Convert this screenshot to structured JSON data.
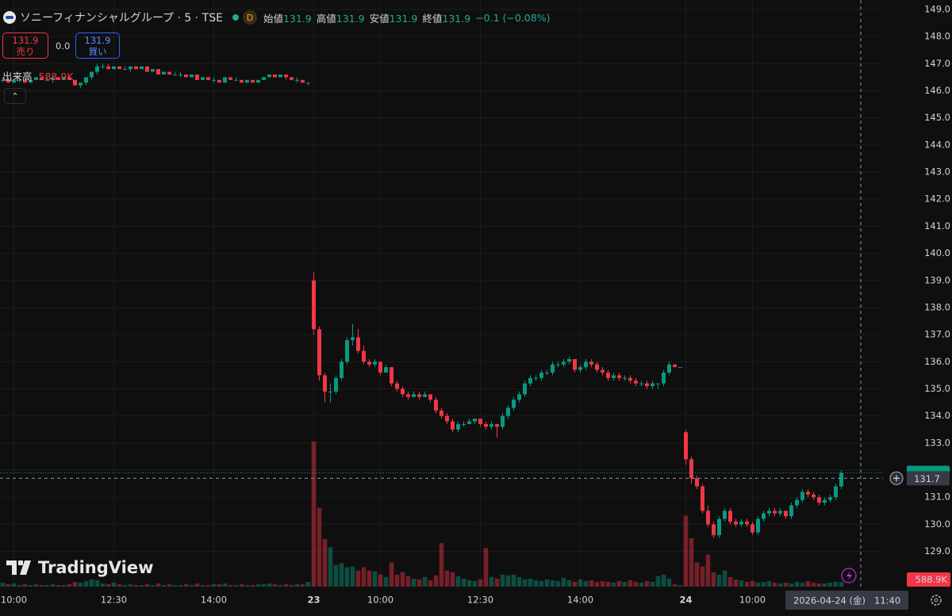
{
  "header": {
    "symbol": "ソニーフィナンシャルグループ · 5 · TSE",
    "interval_badge": "D",
    "ohlc": [
      {
        "label": "始値",
        "value": "131.9"
      },
      {
        "label": "高値",
        "value": "131.9"
      },
      {
        "label": "安値",
        "value": "131.9"
      },
      {
        "label": "終値",
        "value": "131.9"
      }
    ],
    "change": "−0.1 (−0.08%)"
  },
  "trade_buttons": {
    "sell_price": "131.9",
    "sell_label": "売り",
    "spread": "0.0",
    "buy_price": "131.9",
    "buy_label": "買い"
  },
  "volume_legend": {
    "label": "出来高",
    "value": "588.9K"
  },
  "watermark": "TradingView",
  "crosshair": {
    "date": "2026-04-24 (金)",
    "time": "11:40",
    "price": 131.7
  },
  "chart_data": {
    "type": "candlestick",
    "up_color": "#089981",
    "down_color": "#f23645",
    "grid": true,
    "last_price": 131.9,
    "ylim": [
      127.7,
      149.35
    ],
    "yticks": [
      {
        "value": 149,
        "label": "149.0"
      },
      {
        "value": 148,
        "label": "148.0"
      },
      {
        "value": 147,
        "label": "147.0"
      },
      {
        "value": 146,
        "label": "146.0"
      },
      {
        "value": 145,
        "label": "145.0"
      },
      {
        "value": 144,
        "label": "144.0"
      },
      {
        "value": 143,
        "label": "143.0"
      },
      {
        "value": 142,
        "label": "142.0"
      },
      {
        "value": 141,
        "label": "141.0"
      },
      {
        "value": 140,
        "label": "140.0"
      },
      {
        "value": 139,
        "label": "139.0"
      },
      {
        "value": 138,
        "label": "138.0"
      },
      {
        "value": 137,
        "label": "137.0"
      },
      {
        "value": 136,
        "label": "136.0"
      },
      {
        "value": 135,
        "label": "135.0"
      },
      {
        "value": 134,
        "label": "134.0"
      },
      {
        "value": 133,
        "label": "133.0"
      },
      {
        "value": 132,
        "label": "132.0"
      },
      {
        "value": 131,
        "label": "131.0"
      },
      {
        "value": 130,
        "label": "130.0"
      },
      {
        "value": 129,
        "label": "129.0"
      }
    ],
    "categories": [
      null,
      null,
      "10:00",
      null,
      null,
      null,
      null,
      null,
      null,
      null,
      null,
      null,
      null,
      null,
      null,
      null,
      null,
      null,
      null,
      null,
      "12:30",
      null,
      null,
      null,
      null,
      null,
      null,
      null,
      null,
      null,
      null,
      null,
      null,
      null,
      null,
      null,
      null,
      null,
      "14:00",
      null,
      null,
      null,
      null,
      null,
      null,
      null,
      null,
      null,
      null,
      null,
      null,
      null,
      null,
      null,
      null,
      null,
      "23",
      null,
      null,
      null,
      null,
      null,
      null,
      null,
      null,
      null,
      null,
      null,
      "10:00",
      null,
      null,
      null,
      null,
      null,
      null,
      null,
      null,
      null,
      null,
      null,
      null,
      null,
      null,
      null,
      null,
      null,
      "12:30",
      null,
      null,
      null,
      null,
      null,
      null,
      null,
      null,
      null,
      null,
      null,
      null,
      null,
      null,
      null,
      null,
      null,
      "14:00",
      null,
      null,
      null,
      null,
      null,
      null,
      null,
      null,
      null,
      null,
      null,
      null,
      null,
      null,
      null,
      null,
      null,
      null,
      "24",
      null,
      null,
      null,
      null,
      null,
      null,
      null,
      null,
      null,
      null,
      null,
      "10:00",
      null,
      null,
      null,
      null,
      null,
      null,
      null,
      null,
      null,
      null,
      null,
      null,
      null,
      null,
      null,
      null
    ],
    "ohlc": [
      [
        146.4,
        146.5,
        146.3,
        146.4
      ],
      [
        146.4,
        146.5,
        146.3,
        146.3
      ],
      [
        146.3,
        146.4,
        146.3,
        146.4
      ],
      [
        146.4,
        146.5,
        146.3,
        146.4
      ],
      [
        146.4,
        146.4,
        146.3,
        146.3
      ],
      [
        146.3,
        146.4,
        146.3,
        146.4
      ],
      [
        146.4,
        146.5,
        146.4,
        146.5
      ],
      [
        146.5,
        146.5,
        146.4,
        146.4
      ],
      [
        146.4,
        146.5,
        146.4,
        146.4
      ],
      [
        146.4,
        146.5,
        146.3,
        146.5
      ],
      [
        146.5,
        146.5,
        146.4,
        146.4
      ],
      [
        146.4,
        146.5,
        146.4,
        146.5
      ],
      [
        146.5,
        146.5,
        146.4,
        146.4
      ],
      [
        146.4,
        146.4,
        146.2,
        146.2
      ],
      [
        146.2,
        146.3,
        146.1,
        146.3
      ],
      [
        146.3,
        146.5,
        146.2,
        146.5
      ],
      [
        146.5,
        146.7,
        146.4,
        146.7
      ],
      [
        146.7,
        147.0,
        146.6,
        146.9
      ],
      [
        146.9,
        147.0,
        146.8,
        146.9
      ],
      [
        146.9,
        147.0,
        146.8,
        146.8
      ],
      [
        146.8,
        146.9,
        146.8,
        146.9
      ],
      [
        146.9,
        146.9,
        146.8,
        146.8
      ],
      [
        146.8,
        146.9,
        146.8,
        146.8
      ],
      [
        146.8,
        146.9,
        146.7,
        146.9
      ],
      [
        146.9,
        146.9,
        146.8,
        146.8
      ],
      [
        146.8,
        146.9,
        146.8,
        146.9
      ],
      [
        146.9,
        146.9,
        146.7,
        146.7
      ],
      [
        146.7,
        146.8,
        146.7,
        146.8
      ],
      [
        146.8,
        146.8,
        146.6,
        146.6
      ],
      [
        146.6,
        146.7,
        146.6,
        146.7
      ],
      [
        146.7,
        146.7,
        146.6,
        146.6
      ],
      [
        146.6,
        146.7,
        146.6,
        146.6
      ],
      [
        146.6,
        146.7,
        146.5,
        146.6
      ],
      [
        146.6,
        146.6,
        146.5,
        146.5
      ],
      [
        146.5,
        146.6,
        146.5,
        146.6
      ],
      [
        146.6,
        146.6,
        146.4,
        146.4
      ],
      [
        146.4,
        146.5,
        146.4,
        146.5
      ],
      [
        146.5,
        146.5,
        146.4,
        146.4
      ],
      [
        146.4,
        146.5,
        146.3,
        146.4
      ],
      [
        146.4,
        146.4,
        146.3,
        146.3
      ],
      [
        146.3,
        146.5,
        146.3,
        146.5
      ],
      [
        146.5,
        146.5,
        146.4,
        146.4
      ],
      [
        146.4,
        146.5,
        146.4,
        146.4
      ],
      [
        146.4,
        146.4,
        146.3,
        146.3
      ],
      [
        146.3,
        146.4,
        146.3,
        146.4
      ],
      [
        146.4,
        146.4,
        146.3,
        146.3
      ],
      [
        146.3,
        146.4,
        146.3,
        146.4
      ],
      [
        146.4,
        146.5,
        146.4,
        146.5
      ],
      [
        146.5,
        146.6,
        146.5,
        146.6
      ],
      [
        146.6,
        146.6,
        146.5,
        146.5
      ],
      [
        146.5,
        146.6,
        146.5,
        146.6
      ],
      [
        146.6,
        146.6,
        146.4,
        146.5
      ],
      [
        146.5,
        146.5,
        146.4,
        146.4
      ],
      [
        146.4,
        146.5,
        146.3,
        146.4
      ],
      [
        146.4,
        146.4,
        146.3,
        146.3
      ],
      [
        146.3,
        146.3,
        146.2,
        146.3
      ],
      [
        139.0,
        139.3,
        137.0,
        137.2
      ],
      [
        137.2,
        137.3,
        135.3,
        135.5
      ],
      [
        135.5,
        135.6,
        134.5,
        134.9
      ],
      [
        134.9,
        135.2,
        134.5,
        134.9
      ],
      [
        134.9,
        135.5,
        134.8,
        135.4
      ],
      [
        135.4,
        136.1,
        135.3,
        136.0
      ],
      [
        136.0,
        136.9,
        135.9,
        136.8
      ],
      [
        136.8,
        137.4,
        136.6,
        136.9
      ],
      [
        136.9,
        137.2,
        136.3,
        136.4
      ],
      [
        136.4,
        136.6,
        135.9,
        136.0
      ],
      [
        136.0,
        136.1,
        135.8,
        135.9
      ],
      [
        135.9,
        136.1,
        135.8,
        136.0
      ],
      [
        136.0,
        136.0,
        135.5,
        135.6
      ],
      [
        135.6,
        135.9,
        135.6,
        135.8
      ],
      [
        135.8,
        135.8,
        135.1,
        135.2
      ],
      [
        135.2,
        135.3,
        134.9,
        135.0
      ],
      [
        135.0,
        135.1,
        134.7,
        134.8
      ],
      [
        134.8,
        134.9,
        134.6,
        134.7
      ],
      [
        134.7,
        134.9,
        134.7,
        134.8
      ],
      [
        134.8,
        134.9,
        134.6,
        134.7
      ],
      [
        134.7,
        134.9,
        134.7,
        134.8
      ],
      [
        134.8,
        134.8,
        134.5,
        134.6
      ],
      [
        134.6,
        134.7,
        134.1,
        134.2
      ],
      [
        134.2,
        134.3,
        133.9,
        134.0
      ],
      [
        134.0,
        134.1,
        133.7,
        133.8
      ],
      [
        133.8,
        133.9,
        133.4,
        133.5
      ],
      [
        133.5,
        133.8,
        133.4,
        133.7
      ],
      [
        133.7,
        133.8,
        133.6,
        133.7
      ],
      [
        133.7,
        133.9,
        133.7,
        133.8
      ],
      [
        133.8,
        133.9,
        133.7,
        133.9
      ],
      [
        133.9,
        133.9,
        133.6,
        133.7
      ],
      [
        133.7,
        133.8,
        133.5,
        133.6
      ],
      [
        133.6,
        133.8,
        133.5,
        133.7
      ],
      [
        133.7,
        133.7,
        133.2,
        133.6
      ],
      [
        133.6,
        134.1,
        133.5,
        134.0
      ],
      [
        134.0,
        134.4,
        133.9,
        134.3
      ],
      [
        134.3,
        134.7,
        134.2,
        134.6
      ],
      [
        134.6,
        134.9,
        134.5,
        134.8
      ],
      [
        134.8,
        135.3,
        134.7,
        135.2
      ],
      [
        135.2,
        135.5,
        135.1,
        135.4
      ],
      [
        135.4,
        135.5,
        135.3,
        135.4
      ],
      [
        135.4,
        135.7,
        135.3,
        135.6
      ],
      [
        135.6,
        135.7,
        135.5,
        135.6
      ],
      [
        135.6,
        136.0,
        135.5,
        135.9
      ],
      [
        135.9,
        136.0,
        135.8,
        135.9
      ],
      [
        135.9,
        136.1,
        135.8,
        136.0
      ],
      [
        136.0,
        136.2,
        135.9,
        136.1
      ],
      [
        136.1,
        136.1,
        135.6,
        135.7
      ],
      [
        135.7,
        135.9,
        135.6,
        135.8
      ],
      [
        135.8,
        136.1,
        135.7,
        136.0
      ],
      [
        136.0,
        136.1,
        135.8,
        135.9
      ],
      [
        135.9,
        136.0,
        135.6,
        135.7
      ],
      [
        135.7,
        135.8,
        135.5,
        135.6
      ],
      [
        135.6,
        135.7,
        135.3,
        135.4
      ],
      [
        135.4,
        135.6,
        135.3,
        135.5
      ],
      [
        135.5,
        135.6,
        135.3,
        135.4
      ],
      [
        135.4,
        135.5,
        135.3,
        135.4
      ],
      [
        135.4,
        135.5,
        135.2,
        135.3
      ],
      [
        135.3,
        135.4,
        135.1,
        135.2
      ],
      [
        135.2,
        135.3,
        135.1,
        135.2
      ],
      [
        135.2,
        135.3,
        135.0,
        135.1
      ],
      [
        135.1,
        135.3,
        135.0,
        135.2
      ],
      [
        135.2,
        135.2,
        135.0,
        135.2
      ],
      [
        135.2,
        135.7,
        135.1,
        135.6
      ],
      [
        135.6,
        136.0,
        135.5,
        135.9
      ],
      [
        135.9,
        135.9,
        135.8,
        135.8
      ],
      [
        135.8,
        135.8,
        135.8,
        135.8
      ],
      [
        133.4,
        133.5,
        132.2,
        132.4
      ],
      [
        132.4,
        132.5,
        131.5,
        131.7
      ],
      [
        131.7,
        131.8,
        131.3,
        131.4
      ],
      [
        131.4,
        131.5,
        130.4,
        130.5
      ],
      [
        130.5,
        130.7,
        129.9,
        130.0
      ],
      [
        130.0,
        130.1,
        129.5,
        129.6
      ],
      [
        129.6,
        130.3,
        129.5,
        130.2
      ],
      [
        130.2,
        130.6,
        130.1,
        130.5
      ],
      [
        130.5,
        130.6,
        130.0,
        130.1
      ],
      [
        130.1,
        130.2,
        129.9,
        130.0
      ],
      [
        130.0,
        130.2,
        129.9,
        130.1
      ],
      [
        130.1,
        130.2,
        129.9,
        130.0
      ],
      [
        130.0,
        130.1,
        129.6,
        129.7
      ],
      [
        129.7,
        130.3,
        129.6,
        130.2
      ],
      [
        130.2,
        130.5,
        130.1,
        130.4
      ],
      [
        130.4,
        130.6,
        130.3,
        130.5
      ],
      [
        130.5,
        130.6,
        130.3,
        130.4
      ],
      [
        130.4,
        130.6,
        130.3,
        130.5
      ],
      [
        130.5,
        130.5,
        130.2,
        130.3
      ],
      [
        130.3,
        130.8,
        130.2,
        130.7
      ],
      [
        130.7,
        131.0,
        130.6,
        130.9
      ],
      [
        130.9,
        131.3,
        130.8,
        131.2
      ],
      [
        131.2,
        131.3,
        131.0,
        131.1
      ],
      [
        131.1,
        131.2,
        130.9,
        131.0
      ],
      [
        131.0,
        131.1,
        130.7,
        130.8
      ],
      [
        130.8,
        131.0,
        130.7,
        130.9
      ],
      [
        130.9,
        131.1,
        130.8,
        131.0
      ],
      [
        131.0,
        131.5,
        130.9,
        131.4
      ],
      [
        131.4,
        132.0,
        131.3,
        131.9
      ]
    ],
    "volume": [
      500000,
      300000,
      400000,
      200000,
      300000,
      200000,
      300000,
      200000,
      200000,
      300000,
      200000,
      200000,
      300000,
      600000,
      500000,
      700000,
      900000,
      800000,
      400000,
      300000,
      500000,
      300000,
      200000,
      300000,
      200000,
      200000,
      300000,
      200000,
      400000,
      200000,
      300000,
      200000,
      200000,
      300000,
      200000,
      400000,
      200000,
      200000,
      300000,
      300000,
      400000,
      200000,
      200000,
      300000,
      200000,
      200000,
      300000,
      300000,
      400000,
      300000,
      200000,
      300000,
      200000,
      300000,
      300000,
      600000,
      18000000,
      9800000,
      5900000,
      4900000,
      2700000,
      2900000,
      2400000,
      2500000,
      2000000,
      2400000,
      2000000,
      1900000,
      1500000,
      1200000,
      3000000,
      1500000,
      1800000,
      1300000,
      1000000,
      900000,
      1200000,
      800000,
      1400000,
      5400000,
      2000000,
      1800000,
      1300000,
      1000000,
      800000,
      700000,
      900000,
      4800000,
      1200000,
      1000000,
      1500000,
      1400000,
      1500000,
      1200000,
      900000,
      1000000,
      800000,
      700000,
      900000,
      800000,
      700000,
      1100000,
      800000,
      600000,
      900000,
      700000,
      800000,
      600000,
      700000,
      600000,
      500000,
      700000,
      600000,
      800000,
      600000,
      500000,
      700000,
      600000,
      1300000,
      1500000,
      1000000,
      300000,
      200000,
      8800000,
      6000000,
      3000000,
      2500000,
      4000000,
      1800000,
      1500000,
      2000000,
      1200000,
      900000,
      800000,
      600000,
      700000,
      500000,
      600000,
      700000,
      500000,
      400000,
      500000,
      400000,
      600000,
      500000,
      700000,
      500000,
      400000,
      400000,
      500000,
      600000,
      588900
    ]
  }
}
